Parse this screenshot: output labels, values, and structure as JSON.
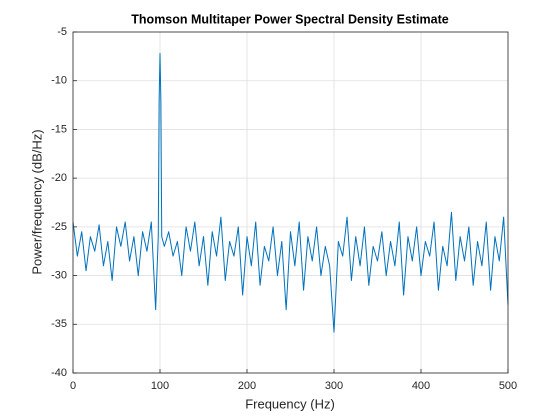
{
  "chart_data": {
    "type": "line",
    "title": "Thomson Multitaper Power Spectral Density Estimate",
    "x_label": "Frequency (Hz)",
    "y_label": "Power/frequency (dB/Hz)",
    "xlim": [
      0,
      500
    ],
    "xticks": [
      0,
      100,
      200,
      300,
      400,
      500
    ],
    "ylim": [
      -40,
      -5
    ],
    "yticks": [
      -40,
      -35,
      -30,
      -25,
      -20,
      -15,
      -10,
      -5
    ],
    "grid": true,
    "x": [
      0,
      5,
      10,
      15,
      20,
      25,
      30,
      35,
      40,
      45,
      50,
      55,
      60,
      65,
      70,
      75,
      80,
      85,
      90,
      95,
      98,
      99,
      100,
      101,
      102,
      105,
      110,
      115,
      120,
      125,
      130,
      135,
      140,
      145,
      150,
      155,
      160,
      165,
      170,
      175,
      180,
      185,
      190,
      195,
      200,
      205,
      210,
      215,
      220,
      225,
      230,
      235,
      240,
      245,
      250,
      255,
      260,
      265,
      270,
      275,
      280,
      285,
      290,
      295,
      300,
      305,
      310,
      315,
      320,
      325,
      330,
      335,
      340,
      345,
      350,
      355,
      360,
      365,
      370,
      375,
      380,
      385,
      390,
      395,
      400,
      405,
      410,
      415,
      420,
      425,
      430,
      435,
      440,
      445,
      450,
      455,
      460,
      465,
      470,
      475,
      480,
      485,
      490,
      495,
      500
    ],
    "series": [
      {
        "color": "#0072bd",
        "values": [
          -24.5,
          -28,
          -25.5,
          -29.5,
          -26,
          -27.5,
          -24.8,
          -29,
          -26.5,
          -30.5,
          -25,
          -27,
          -24.5,
          -28.5,
          -26,
          -30,
          -25.5,
          -27.5,
          -24.5,
          -33.5,
          -26,
          -12,
          -7.2,
          -12,
          -26,
          -27,
          -25.5,
          -28,
          -26.5,
          -30,
          -25,
          -27.5,
          -24.5,
          -29,
          -26,
          -31,
          -25.5,
          -28,
          -24,
          -30.5,
          -26.5,
          -28,
          -25,
          -32,
          -26,
          -29,
          -24.5,
          -31,
          -27,
          -28.5,
          -25,
          -30,
          -26.5,
          -33.5,
          -25.5,
          -29,
          -24.5,
          -31.5,
          -26,
          -28.5,
          -25,
          -30,
          -27,
          -29,
          -35.8,
          -26.5,
          -28,
          -24,
          -30.5,
          -26,
          -29,
          -25,
          -31,
          -27,
          -28.5,
          -25.5,
          -30,
          -26.5,
          -29,
          -24.5,
          -32,
          -26,
          -28.5,
          -25,
          -30,
          -26.5,
          -28,
          -24.5,
          -31.5,
          -27,
          -29,
          -23.5,
          -30.5,
          -26,
          -28.5,
          -25,
          -31,
          -26.5,
          -29,
          -24.5,
          -31.5,
          -26,
          -28.5,
          -24,
          -33
        ]
      }
    ]
  }
}
